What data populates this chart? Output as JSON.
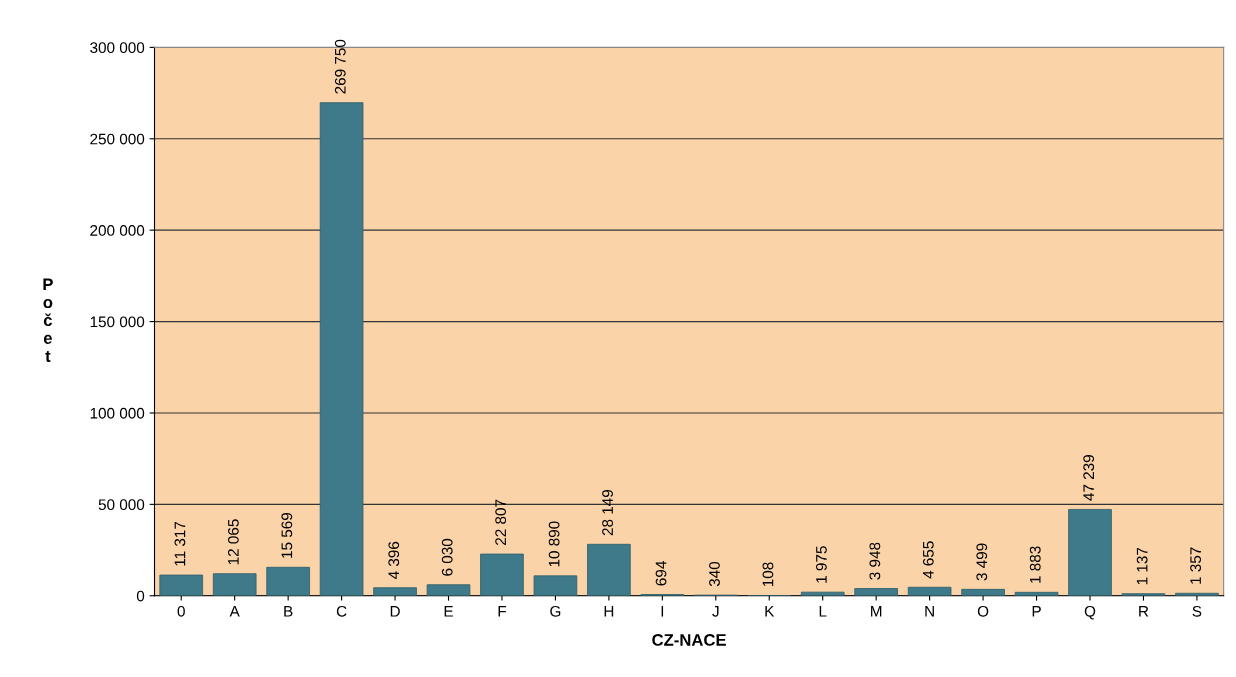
{
  "chart_data": {
    "type": "bar",
    "xlabel": "CZ-NACE",
    "ylabel": "Počet",
    "categories": [
      "0",
      "A",
      "B",
      "C",
      "D",
      "E",
      "F",
      "G",
      "H",
      "I",
      "J",
      "K",
      "L",
      "M",
      "N",
      "O",
      "P",
      "Q",
      "R",
      "S"
    ],
    "values": [
      11317,
      12065,
      15569,
      269750,
      4396,
      6030,
      22807,
      10890,
      28149,
      694,
      340,
      108,
      1975,
      3948,
      4655,
      3499,
      1883,
      47239,
      1137,
      1357
    ],
    "value_labels": [
      "11 317",
      "12 065",
      "15 569",
      "269 750",
      "4 396",
      "6 030",
      "22 807",
      "10 890",
      "28 149",
      "694",
      "340",
      "108",
      "1 975",
      "3 948",
      "4 655",
      "3 499",
      "1 883",
      "47 239",
      "1 137",
      "1 357"
    ],
    "color": "#3f7a8a",
    "ylim": [
      0,
      300000
    ],
    "yticks": [
      {
        "value": 0,
        "label": "0"
      },
      {
        "value": 50000,
        "label": "50 000"
      },
      {
        "value": 100000,
        "label": "100 000"
      },
      {
        "value": 150000,
        "label": "150 000"
      },
      {
        "value": 200000,
        "label": "200 000"
      },
      {
        "value": 250000,
        "label": "250 000"
      },
      {
        "value": 300000,
        "label": "300 000"
      }
    ],
    "grid": "y"
  }
}
